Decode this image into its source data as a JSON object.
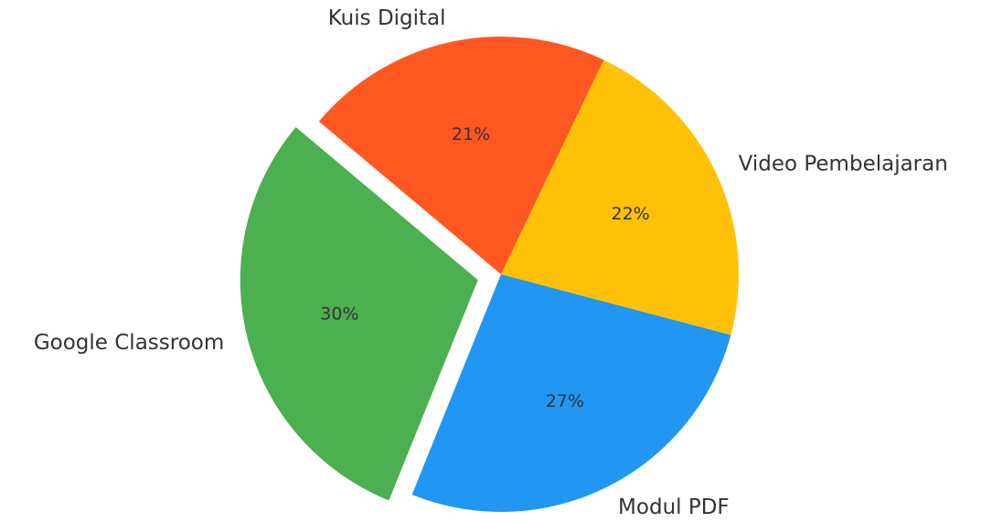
{
  "chart_data": {
    "type": "pie",
    "categories": [
      "Google Classroom",
      "Modul PDF",
      "Video Pembelajaran",
      "Kuis Digital"
    ],
    "values": [
      30,
      27,
      22,
      21
    ],
    "value_labels": [
      "30%",
      "27%",
      "22%",
      "21%"
    ],
    "colors": [
      "#4caf50",
      "#2196f3",
      "#ffc107",
      "#ff5722"
    ],
    "explode": [
      0.1,
      0,
      0,
      0
    ],
    "start_angle": 140,
    "counterclockwise": true
  }
}
